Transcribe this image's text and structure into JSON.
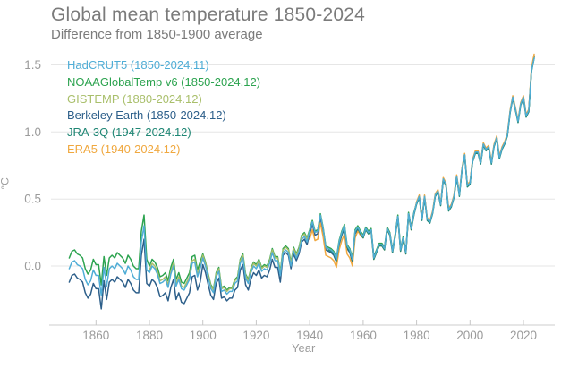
{
  "title": "Global mean temperature 1850-2024",
  "subtitle": "Difference from 1850-1900 average",
  "palette": {
    "background": "#ffffff",
    "title_text": "#7b7b7b",
    "axis_text": "#9b9b9b",
    "gridline": "#e6e6e6",
    "axis_line": "#cccccc",
    "tick": "#c6c6c6"
  },
  "chart_data": {
    "type": "line",
    "title": "Global mean temperature 1850-2024",
    "subtitle": "Difference from 1850-1900 average",
    "xlabel": "Year",
    "ylabel": "°C",
    "xlim": [
      1850,
      2024
    ],
    "ylim": [
      -0.45,
      1.6
    ],
    "grid": "horizontal",
    "legend_position": "top-left",
    "x_ticks": [
      1860,
      1880,
      1900,
      1920,
      1940,
      1960,
      1980,
      2000,
      2020
    ],
    "y_ticks": [
      0.0,
      0.5,
      1.0,
      1.5
    ],
    "series": [
      {
        "name": "HadCRUT5",
        "label": "HadCRUT5 (1850-2024.11)",
        "color": "#4fadd6",
        "start_year": 1850,
        "values": [
          -0.02,
          0.03,
          0.04,
          0.01,
          0.0,
          -0.02,
          -0.1,
          -0.14,
          -0.11,
          -0.03,
          -0.07,
          -0.07,
          -0.22,
          -0.01,
          -0.15,
          -0.02,
          0.0,
          -0.02,
          0.02,
          0.0,
          -0.02,
          -0.06,
          0.0,
          -0.03,
          -0.08,
          -0.1,
          -0.1,
          0.18,
          0.3,
          -0.03,
          -0.05,
          0.0,
          -0.02,
          -0.06,
          -0.13,
          -0.12,
          -0.1,
          -0.16,
          -0.06,
          0.0,
          -0.15,
          -0.1,
          -0.17,
          -0.18,
          -0.14,
          -0.1,
          0.02,
          0.03,
          -0.08,
          -0.02,
          0.06,
          0.0,
          -0.09,
          -0.17,
          -0.2,
          -0.08,
          -0.04,
          -0.19,
          -0.18,
          -0.21,
          -0.19,
          -0.19,
          -0.13,
          -0.11,
          0.02,
          0.06,
          -0.09,
          -0.13,
          -0.05,
          0.0,
          -0.02,
          0.02,
          -0.04,
          -0.02,
          -0.03,
          0.02,
          0.1,
          0.04,
          0.04,
          -0.07,
          0.1,
          0.12,
          0.1,
          0.0,
          0.11,
          0.06,
          0.11,
          0.2,
          0.22,
          0.18,
          0.26,
          0.33,
          0.25,
          0.26,
          0.38,
          0.28,
          0.14,
          0.13,
          0.12,
          0.1,
          0.05,
          0.18,
          0.25,
          0.3,
          0.15,
          0.12,
          0.05,
          0.26,
          0.29,
          0.25,
          0.22,
          0.28,
          0.25,
          0.27,
          0.06,
          0.11,
          0.16,
          0.16,
          0.13,
          0.28,
          0.24,
          0.11,
          0.23,
          0.37,
          0.12,
          0.21,
          0.1,
          0.39,
          0.28,
          0.39,
          0.47,
          0.52,
          0.35,
          0.52,
          0.35,
          0.33,
          0.4,
          0.53,
          0.56,
          0.46,
          0.65,
          0.61,
          0.42,
          0.45,
          0.52,
          0.67,
          0.53,
          0.72,
          0.83,
          0.6,
          0.62,
          0.79,
          0.85,
          0.85,
          0.77,
          0.91,
          0.87,
          0.89,
          0.77,
          0.9,
          0.96,
          0.81,
          0.88,
          0.92,
          0.98,
          1.15,
          1.26,
          1.17,
          1.08,
          1.21,
          1.26,
          1.12,
          1.16,
          1.46,
          1.55
        ]
      },
      {
        "name": "NOAAGlobalTemp v6",
        "label": "NOAAGlobalTemp v6 (1850-2024.12)",
        "color": "#2ca34f",
        "start_year": 1850,
        "values": [
          0.06,
          0.11,
          0.12,
          0.09,
          0.08,
          0.06,
          -0.02,
          -0.06,
          -0.03,
          0.05,
          0.01,
          0.01,
          -0.14,
          0.07,
          -0.07,
          0.06,
          0.08,
          0.06,
          0.1,
          0.08,
          0.06,
          0.02,
          0.08,
          0.05,
          0.0,
          -0.02,
          -0.02,
          0.26,
          0.38,
          0.05,
          0.0,
          0.05,
          0.03,
          -0.01,
          -0.08,
          -0.07,
          -0.05,
          -0.11,
          -0.01,
          0.05,
          -0.1,
          -0.05,
          -0.12,
          -0.13,
          -0.09,
          -0.05,
          0.07,
          0.08,
          -0.03,
          0.03,
          0.09,
          0.03,
          -0.06,
          -0.14,
          -0.17,
          -0.05,
          -0.01,
          -0.16,
          -0.15,
          -0.18,
          -0.16,
          -0.16,
          -0.1,
          -0.08,
          0.05,
          0.09,
          -0.06,
          -0.1,
          -0.02,
          0.03,
          0.01,
          0.05,
          -0.01,
          0.01,
          0.0,
          0.05,
          0.13,
          0.07,
          0.07,
          -0.04,
          0.13,
          0.15,
          0.13,
          0.03,
          0.14,
          0.09,
          0.14,
          0.23,
          0.25,
          0.21,
          0.27,
          0.34,
          0.26,
          0.27,
          0.39,
          0.29,
          0.15,
          0.14,
          0.13,
          0.11,
          0.06,
          0.19,
          0.26,
          0.31,
          0.16,
          0.13,
          0.06,
          0.27,
          0.3,
          0.26,
          0.23,
          0.29,
          0.26,
          0.28,
          0.07,
          0.12,
          0.17,
          0.17,
          0.14,
          0.29,
          0.25,
          0.12,
          0.24,
          0.38,
          0.13,
          0.22,
          0.11,
          0.4,
          0.29,
          0.4,
          0.47,
          0.52,
          0.35,
          0.52,
          0.35,
          0.33,
          0.4,
          0.53,
          0.56,
          0.46,
          0.65,
          0.61,
          0.42,
          0.45,
          0.52,
          0.67,
          0.53,
          0.72,
          0.83,
          0.6,
          0.62,
          0.79,
          0.85,
          0.85,
          0.77,
          0.91,
          0.87,
          0.89,
          0.77,
          0.9,
          0.96,
          0.81,
          0.88,
          0.92,
          0.98,
          1.15,
          1.26,
          1.17,
          1.08,
          1.21,
          1.26,
          1.12,
          1.16,
          1.46,
          1.56
        ]
      },
      {
        "name": "GISTEMP",
        "label": "GISTEMP (1880-2024.12)",
        "color": "#a9bf6b",
        "start_year": 1880,
        "values": [
          -0.03,
          0.02,
          0.0,
          -0.04,
          -0.11,
          -0.1,
          -0.08,
          -0.14,
          -0.04,
          0.02,
          -0.13,
          -0.08,
          -0.15,
          -0.16,
          -0.12,
          -0.08,
          0.04,
          0.05,
          -0.06,
          0.0,
          0.08,
          0.02,
          -0.07,
          -0.15,
          -0.18,
          -0.06,
          -0.02,
          -0.17,
          -0.16,
          -0.19,
          -0.17,
          -0.17,
          -0.11,
          -0.09,
          0.04,
          0.08,
          -0.07,
          -0.11,
          -0.03,
          0.02,
          0.0,
          0.04,
          -0.02,
          0.0,
          -0.01,
          0.04,
          0.12,
          0.06,
          0.06,
          -0.05,
          0.12,
          0.14,
          0.12,
          0.02,
          0.13,
          0.08,
          0.13,
          0.22,
          0.24,
          0.2,
          0.26,
          0.33,
          0.25,
          0.26,
          0.38,
          0.28,
          0.14,
          0.13,
          0.12,
          0.1,
          0.05,
          0.18,
          0.25,
          0.3,
          0.15,
          0.12,
          0.05,
          0.26,
          0.29,
          0.25,
          0.22,
          0.28,
          0.25,
          0.27,
          0.06,
          0.11,
          0.16,
          0.16,
          0.13,
          0.28,
          0.24,
          0.11,
          0.23,
          0.37,
          0.12,
          0.21,
          0.1,
          0.39,
          0.28,
          0.39,
          0.47,
          0.52,
          0.35,
          0.52,
          0.35,
          0.33,
          0.4,
          0.53,
          0.56,
          0.46,
          0.65,
          0.61,
          0.42,
          0.45,
          0.52,
          0.67,
          0.53,
          0.72,
          0.83,
          0.6,
          0.62,
          0.79,
          0.85,
          0.85,
          0.77,
          0.91,
          0.87,
          0.89,
          0.77,
          0.9,
          0.96,
          0.81,
          0.88,
          0.92,
          0.98,
          1.15,
          1.26,
          1.17,
          1.08,
          1.21,
          1.26,
          1.12,
          1.16,
          1.46,
          1.56
        ]
      },
      {
        "name": "Berkeley Earth",
        "label": "Berkeley Earth (1850-2024.12)",
        "color": "#2d5f8a",
        "start_year": 1850,
        "values": [
          -0.12,
          -0.07,
          -0.06,
          -0.09,
          -0.1,
          -0.12,
          -0.2,
          -0.24,
          -0.21,
          -0.13,
          -0.17,
          -0.17,
          -0.32,
          -0.11,
          -0.25,
          -0.12,
          -0.1,
          -0.12,
          -0.08,
          -0.1,
          -0.12,
          -0.16,
          -0.1,
          -0.13,
          -0.18,
          -0.2,
          -0.2,
          0.08,
          0.2,
          -0.13,
          -0.15,
          -0.1,
          -0.12,
          -0.16,
          -0.23,
          -0.22,
          -0.2,
          -0.26,
          -0.16,
          -0.1,
          -0.25,
          -0.2,
          -0.27,
          -0.28,
          -0.24,
          -0.2,
          -0.08,
          -0.07,
          -0.18,
          -0.12,
          0.01,
          -0.05,
          -0.14,
          -0.22,
          -0.25,
          -0.13,
          -0.09,
          -0.24,
          -0.23,
          -0.26,
          -0.24,
          -0.24,
          -0.18,
          -0.16,
          -0.03,
          0.01,
          -0.14,
          -0.18,
          -0.1,
          -0.05,
          -0.07,
          -0.03,
          -0.09,
          -0.07,
          -0.08,
          -0.03,
          0.05,
          -0.01,
          -0.01,
          -0.12,
          0.08,
          0.1,
          0.08,
          -0.02,
          0.09,
          0.04,
          0.09,
          0.18,
          0.2,
          0.16,
          0.24,
          0.31,
          0.23,
          0.24,
          0.36,
          0.26,
          0.12,
          0.11,
          0.1,
          0.08,
          0.03,
          0.16,
          0.23,
          0.28,
          0.13,
          0.1,
          0.03,
          0.24,
          0.27,
          0.23,
          0.22,
          0.28,
          0.25,
          0.27,
          0.06,
          0.11,
          0.16,
          0.16,
          0.13,
          0.28,
          0.24,
          0.11,
          0.23,
          0.37,
          0.12,
          0.21,
          0.1,
          0.39,
          0.28,
          0.39,
          0.47,
          0.52,
          0.35,
          0.52,
          0.35,
          0.33,
          0.4,
          0.53,
          0.56,
          0.46,
          0.65,
          0.61,
          0.42,
          0.45,
          0.52,
          0.67,
          0.53,
          0.72,
          0.83,
          0.6,
          0.62,
          0.79,
          0.85,
          0.85,
          0.77,
          0.91,
          0.87,
          0.89,
          0.77,
          0.9,
          0.96,
          0.81,
          0.88,
          0.92,
          0.98,
          1.15,
          1.26,
          1.17,
          1.08,
          1.21,
          1.26,
          1.12,
          1.16,
          1.46,
          1.57
        ]
      },
      {
        "name": "JRA-3Q",
        "label": "JRA-3Q (1947-2024.12)",
        "color": "#1f8674",
        "start_year": 1947,
        "values": [
          0.12,
          0.11,
          0.09,
          0.04,
          0.17,
          0.24,
          0.29,
          0.14,
          0.11,
          0.04,
          0.25,
          0.28,
          0.24,
          0.21,
          0.27,
          0.24,
          0.26,
          0.05,
          0.1,
          0.15,
          0.15,
          0.12,
          0.27,
          0.23,
          0.1,
          0.22,
          0.36,
          0.11,
          0.2,
          0.09,
          0.38,
          0.27,
          0.38,
          0.46,
          0.51,
          0.34,
          0.51,
          0.34,
          0.32,
          0.39,
          0.52,
          0.55,
          0.45,
          0.64,
          0.6,
          0.41,
          0.44,
          0.51,
          0.66,
          0.52,
          0.71,
          0.82,
          0.59,
          0.61,
          0.78,
          0.84,
          0.84,
          0.76,
          0.9,
          0.86,
          0.88,
          0.76,
          0.89,
          0.95,
          0.8,
          0.87,
          0.91,
          0.97,
          1.14,
          1.25,
          1.16,
          1.07,
          1.2,
          1.25,
          1.11,
          1.15,
          1.45,
          1.55
        ]
      },
      {
        "name": "ERA5",
        "label": "ERA5 (1940-2024.12)",
        "color": "#f0a83f",
        "start_year": 1940,
        "values": [
          0.2,
          0.27,
          0.19,
          0.2,
          0.32,
          0.22,
          0.08,
          0.07,
          0.06,
          0.04,
          -0.01,
          0.12,
          0.19,
          0.24,
          0.09,
          0.06,
          0.0,
          0.21,
          0.26,
          0.23,
          0.21,
          0.27,
          0.24,
          0.26,
          0.05,
          0.1,
          0.15,
          0.15,
          0.12,
          0.27,
          0.23,
          0.1,
          0.22,
          0.36,
          0.11,
          0.2,
          0.09,
          0.38,
          0.27,
          0.38,
          0.48,
          0.53,
          0.36,
          0.53,
          0.36,
          0.34,
          0.41,
          0.54,
          0.57,
          0.47,
          0.66,
          0.62,
          0.43,
          0.46,
          0.53,
          0.68,
          0.54,
          0.73,
          0.84,
          0.61,
          0.63,
          0.8,
          0.86,
          0.86,
          0.78,
          0.92,
          0.88,
          0.9,
          0.78,
          0.91,
          0.97,
          0.82,
          0.89,
          0.93,
          0.99,
          1.16,
          1.27,
          1.18,
          1.09,
          1.22,
          1.27,
          1.13,
          1.17,
          1.48,
          1.58
        ]
      }
    ]
  }
}
